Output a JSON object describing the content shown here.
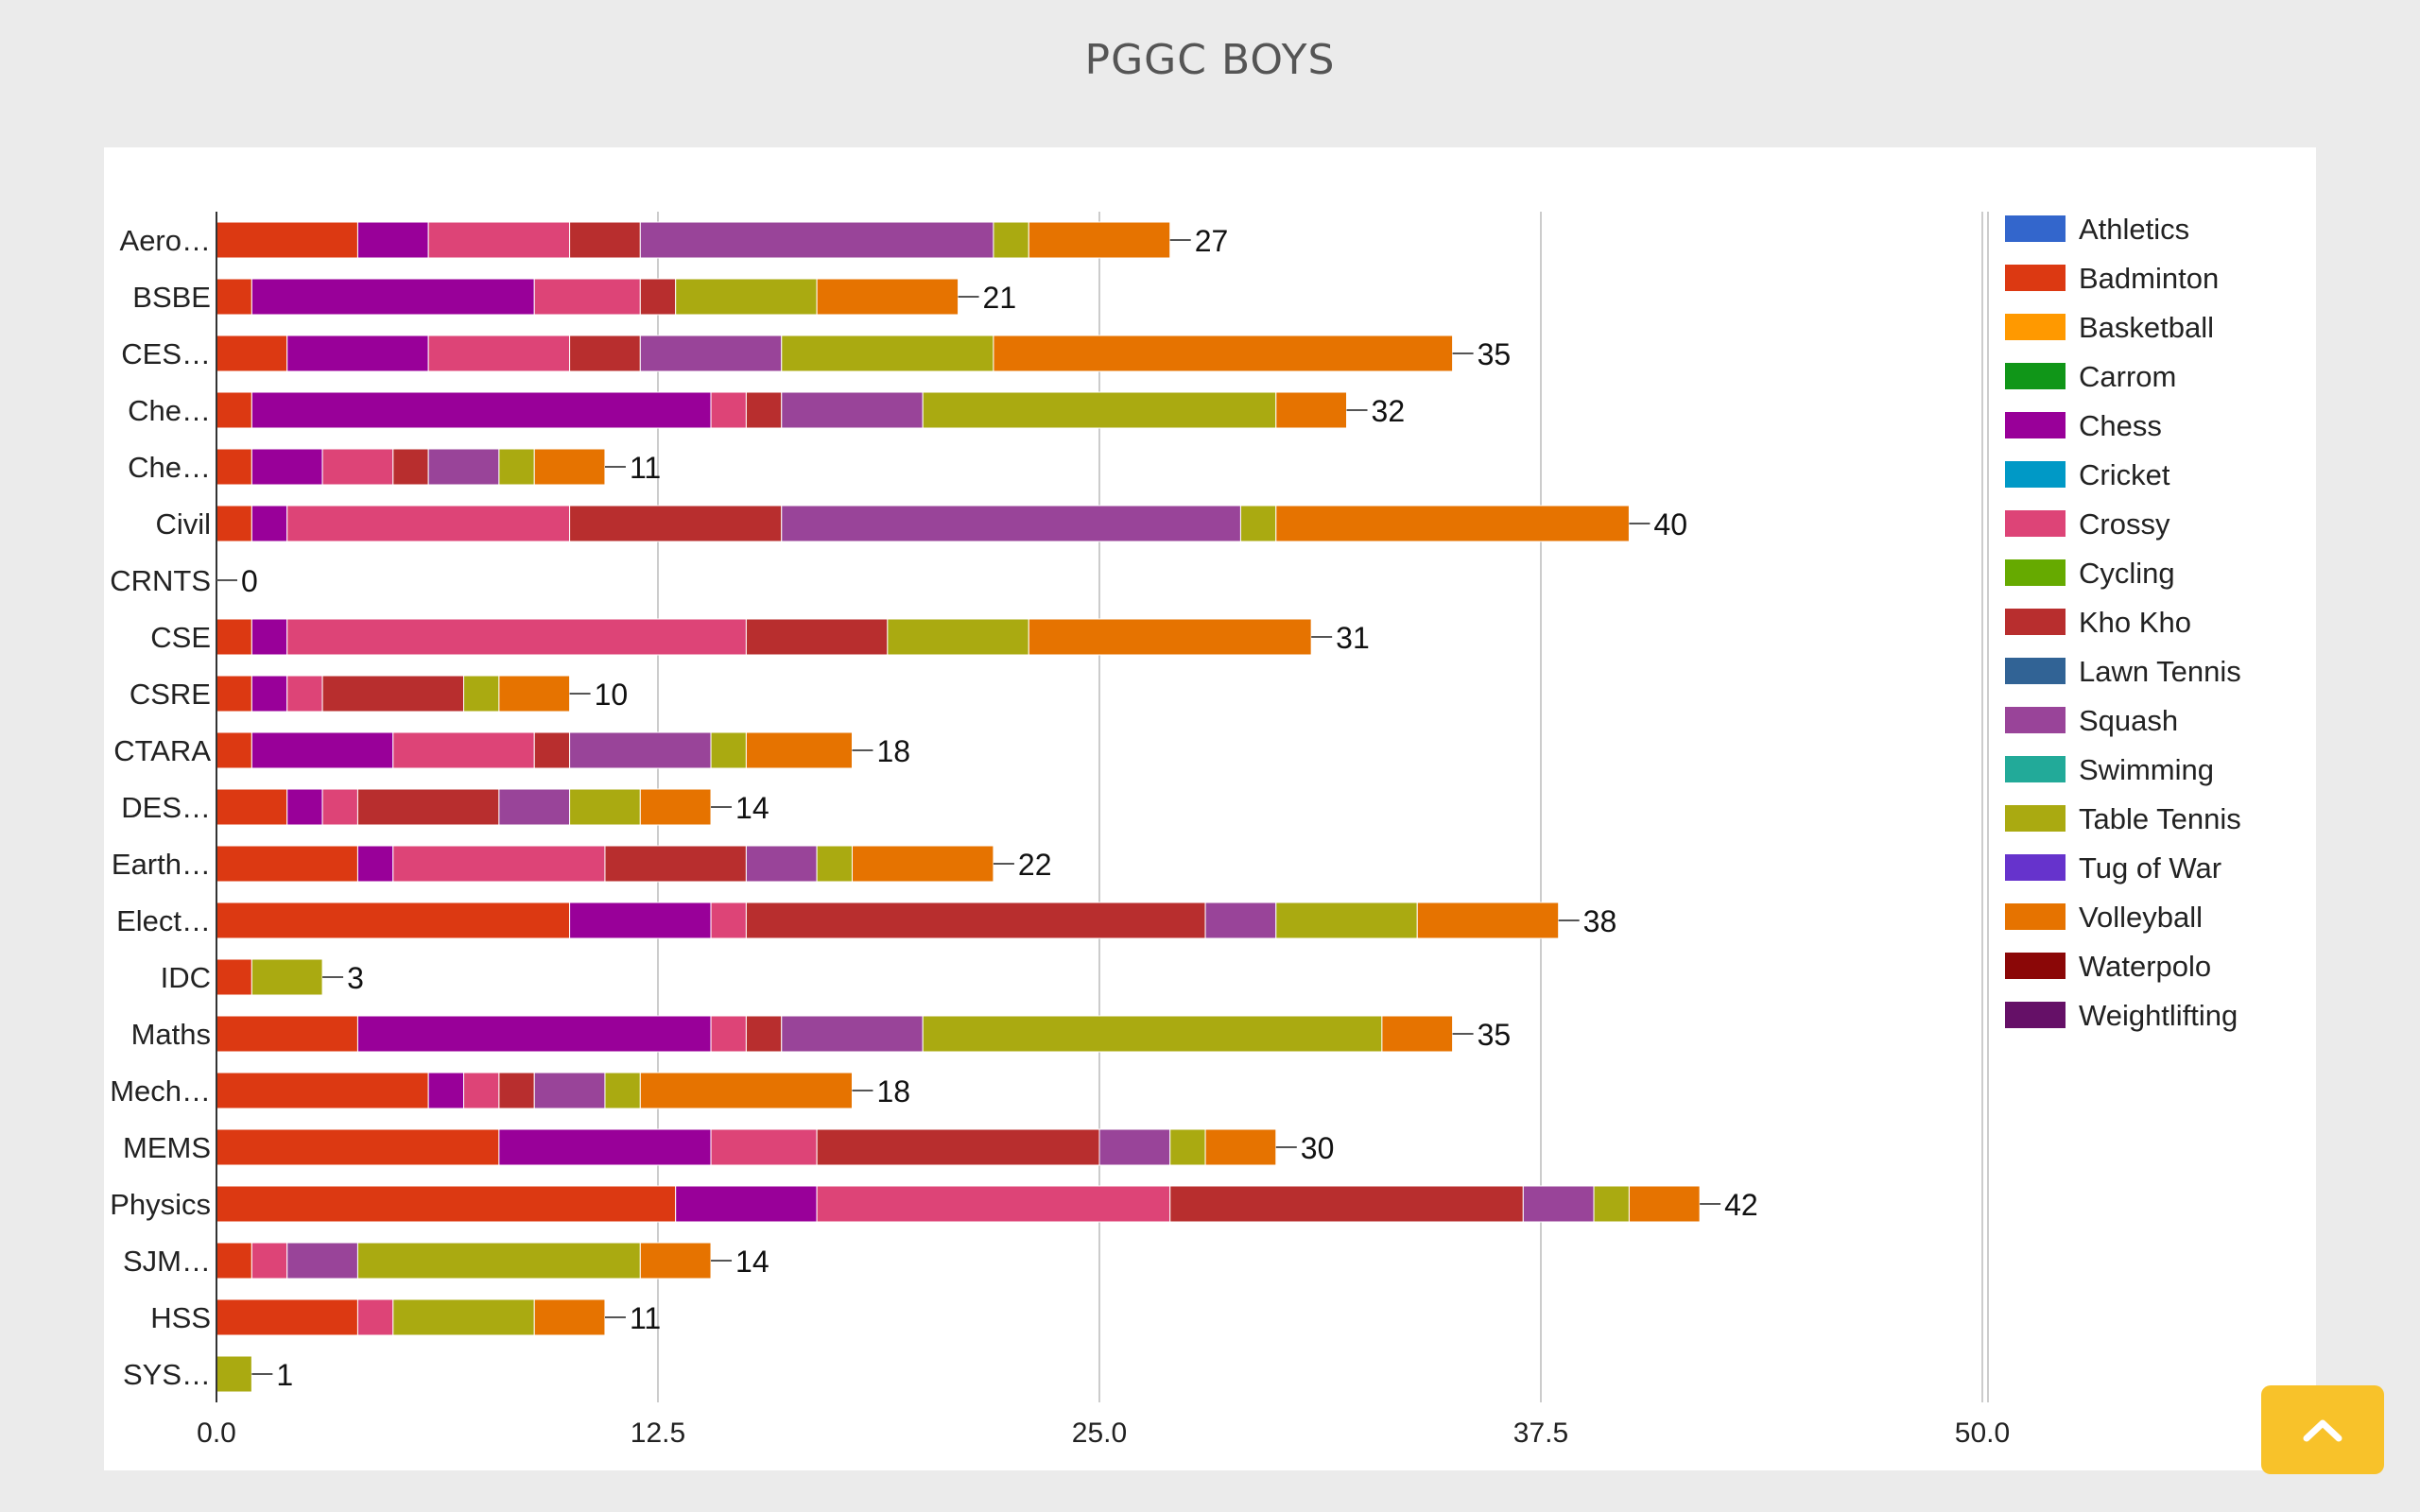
{
  "page": {
    "title": "PGGC BOYS"
  },
  "scroll_top": {
    "icon": "chevron-up-icon"
  },
  "chart_data": {
    "type": "bar",
    "orientation": "horizontal",
    "stacked": true,
    "title": "PGGC BOYS",
    "xlim": [
      0,
      50
    ],
    "x_ticks": [
      "0.0",
      "12.5",
      "25.0",
      "37.5",
      "50.0"
    ],
    "grid": true,
    "legend_position": "right",
    "categories": [
      "Aero…",
      "BSBE",
      "CES…",
      "Che…",
      "Che…",
      "Civil",
      "CRNTS",
      "CSE",
      "CSRE",
      "CTARA",
      "DES…",
      "Earth…",
      "Elect…",
      "IDC",
      "Maths",
      "Mech…",
      "MEMS",
      "Physics",
      "SJM…",
      "HSS",
      "SYS…"
    ],
    "totals": [
      27,
      21,
      35,
      32,
      11,
      40,
      0,
      31,
      10,
      18,
      14,
      22,
      38,
      3,
      35,
      18,
      30,
      42,
      14,
      11,
      1
    ],
    "series": [
      {
        "name": "Athletics",
        "color": "#3366cc",
        "values": [
          0,
          0,
          0,
          0,
          0,
          0,
          0,
          0,
          0,
          0,
          0,
          0,
          0,
          0,
          0,
          0,
          0,
          0,
          0,
          0,
          0
        ]
      },
      {
        "name": "Badminton",
        "color": "#dc3912",
        "values": [
          4,
          1,
          2,
          1,
          1,
          1,
          0,
          1,
          1,
          1,
          2,
          4,
          10,
          1,
          4,
          6,
          8,
          13,
          1,
          4,
          0
        ]
      },
      {
        "name": "Basketball",
        "color": "#ff9900",
        "values": [
          0,
          0,
          0,
          0,
          0,
          0,
          0,
          0,
          0,
          0,
          0,
          0,
          0,
          0,
          0,
          0,
          0,
          0,
          0,
          0,
          0
        ]
      },
      {
        "name": "Carrom",
        "color": "#109618",
        "values": [
          0,
          0,
          0,
          0,
          0,
          0,
          0,
          0,
          0,
          0,
          0,
          0,
          0,
          0,
          0,
          0,
          0,
          0,
          0,
          0,
          0
        ]
      },
      {
        "name": "Chess",
        "color": "#990099",
        "values": [
          2,
          8,
          4,
          13,
          2,
          1,
          0,
          1,
          1,
          4,
          1,
          1,
          4,
          0,
          10,
          1,
          6,
          4,
          0,
          0,
          0
        ]
      },
      {
        "name": "Cricket",
        "color": "#0099c6",
        "values": [
          0,
          0,
          0,
          0,
          0,
          0,
          0,
          0,
          0,
          0,
          0,
          0,
          0,
          0,
          0,
          0,
          0,
          0,
          0,
          0,
          0
        ]
      },
      {
        "name": "Crossy",
        "color": "#dd4477",
        "values": [
          4,
          3,
          4,
          1,
          2,
          8,
          0,
          13,
          1,
          4,
          1,
          6,
          1,
          0,
          1,
          1,
          3,
          10,
          1,
          1,
          0
        ]
      },
      {
        "name": "Cycling",
        "color": "#66aa00",
        "values": [
          0,
          0,
          0,
          0,
          0,
          0,
          0,
          0,
          0,
          0,
          0,
          0,
          0,
          0,
          0,
          0,
          0,
          0,
          0,
          0,
          0
        ]
      },
      {
        "name": "Kho Kho",
        "color": "#b82e2e",
        "values": [
          2,
          1,
          2,
          1,
          1,
          6,
          0,
          4,
          4,
          1,
          4,
          4,
          13,
          0,
          1,
          1,
          8,
          10,
          0,
          0,
          0
        ]
      },
      {
        "name": "Lawn Tennis",
        "color": "#316395",
        "values": [
          0,
          0,
          0,
          0,
          0,
          0,
          0,
          0,
          0,
          0,
          0,
          0,
          0,
          0,
          0,
          0,
          0,
          0,
          0,
          0,
          0
        ]
      },
      {
        "name": "Squash",
        "color": "#994499",
        "values": [
          10,
          0,
          4,
          4,
          2,
          13,
          0,
          0,
          0,
          4,
          2,
          2,
          2,
          0,
          4,
          2,
          2,
          2,
          2,
          0,
          0
        ]
      },
      {
        "name": "Swimming",
        "color": "#22aa99",
        "values": [
          0,
          0,
          0,
          0,
          0,
          0,
          0,
          0,
          0,
          0,
          0,
          0,
          0,
          0,
          0,
          0,
          0,
          0,
          0,
          0,
          0
        ]
      },
      {
        "name": "Table Tennis",
        "color": "#aaaa11",
        "values": [
          1,
          4,
          6,
          10,
          1,
          1,
          0,
          4,
          1,
          1,
          2,
          1,
          4,
          2,
          13,
          1,
          1,
          1,
          8,
          4,
          1
        ]
      },
      {
        "name": "Tug of War",
        "color": "#6633cc",
        "values": [
          0,
          0,
          0,
          0,
          0,
          0,
          0,
          0,
          0,
          0,
          0,
          0,
          0,
          0,
          0,
          0,
          0,
          0,
          0,
          0,
          0
        ]
      },
      {
        "name": "Volleyball",
        "color": "#e67300",
        "values": [
          4,
          4,
          13,
          2,
          2,
          10,
          0,
          8,
          2,
          3,
          2,
          4,
          4,
          0,
          2,
          6,
          2,
          2,
          2,
          2,
          0
        ]
      },
      {
        "name": "Waterpolo",
        "color": "#8b0707",
        "values": [
          0,
          0,
          0,
          0,
          0,
          0,
          0,
          0,
          0,
          0,
          0,
          0,
          0,
          0,
          0,
          0,
          0,
          0,
          0,
          0,
          0
        ]
      },
      {
        "name": "Weightlifting",
        "color": "#651067",
        "values": [
          0,
          0,
          0,
          0,
          0,
          0,
          0,
          0,
          0,
          0,
          0,
          0,
          0,
          0,
          0,
          0,
          0,
          0,
          0,
          0,
          0
        ]
      }
    ]
  }
}
